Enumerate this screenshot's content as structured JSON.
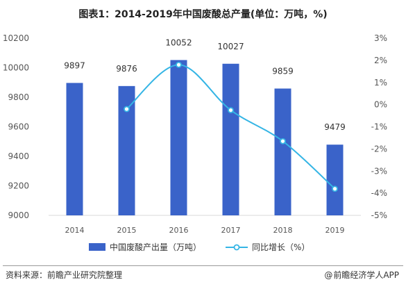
{
  "title": "图表1：2014-2019年中国废酸总产量(单位：万吨，%)",
  "footer": {
    "source": "资料来源：前瞻产业研究院整理",
    "brand_at": "@",
    "brand": "前瞻经济学人APP"
  },
  "colors": {
    "bar": "#3a63c9",
    "line": "#35b5e5",
    "axis_text": "#555555",
    "grid": "#d9d9d9"
  },
  "chart_data": {
    "type": "bar",
    "categories": [
      "2014",
      "2015",
      "2016",
      "2017",
      "2018",
      "2019"
    ],
    "series": [
      {
        "name": "中国废酸产出量（万吨）",
        "type": "bar",
        "axis": "left",
        "values": [
          9897,
          9876,
          10052,
          10027,
          9859,
          9479
        ],
        "value_labels": [
          "9897",
          "9876",
          "10052",
          "10027",
          "9859",
          "9479"
        ]
      },
      {
        "name": "同比增长（%）",
        "type": "line",
        "axis": "right",
        "values": [
          null,
          -0.2,
          1.8,
          -0.25,
          -1.65,
          -3.8
        ]
      }
    ],
    "y_left": {
      "ylim": [
        9000,
        10200
      ],
      "ticks": [
        "9000",
        "9200",
        "9400",
        "9600",
        "9800",
        "10000",
        "10200"
      ]
    },
    "y_right": {
      "ylim": [
        -5,
        3
      ],
      "ticks": [
        "-5%",
        "-4%",
        "-3%",
        "-2%",
        "-1%",
        "0%",
        "1%",
        "2%",
        "3%"
      ]
    },
    "legend": "bottom",
    "grid": false
  }
}
